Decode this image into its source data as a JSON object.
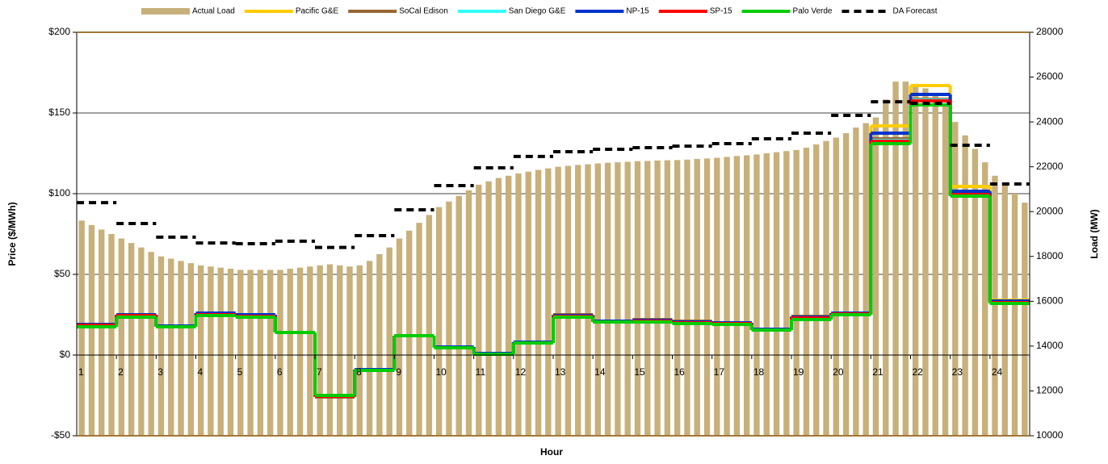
{
  "chart_data": {
    "type": "bar-step-line",
    "xlabel": "Hour",
    "ylabel": "Price ($/MWh)",
    "y2label": "Load (MW)",
    "xlim": [
      1,
      25
    ],
    "xticks": [
      1,
      2,
      3,
      4,
      5,
      6,
      7,
      8,
      9,
      10,
      11,
      12,
      13,
      14,
      15,
      16,
      17,
      18,
      19,
      20,
      21,
      22,
      23,
      24
    ],
    "ylim": [
      -50,
      200
    ],
    "yticks": [
      {
        "value": -50,
        "label": "-$50"
      },
      {
        "value": 0,
        "label": "$0"
      },
      {
        "value": 50,
        "label": "$50"
      },
      {
        "value": 100,
        "label": "$100"
      },
      {
        "value": 150,
        "label": "$150"
      },
      {
        "value": 200,
        "label": "$200"
      }
    ],
    "y2lim": [
      10000,
      28000
    ],
    "y2ticks": [
      10000,
      12000,
      14000,
      16000,
      18000,
      20000,
      22000,
      24000,
      26000,
      28000
    ],
    "grid": true,
    "legend": "top",
    "x": [
      1,
      2,
      3,
      4,
      5,
      6,
      7,
      8,
      9,
      10,
      11,
      12,
      13,
      14,
      15,
      16,
      17,
      18,
      19,
      20,
      21,
      22,
      23,
      24
    ],
    "series": [
      {
        "name": "Actual Load",
        "color": "#c8b07a",
        "kind": "bar",
        "axis": "y2",
        "x": [
          1,
          1.25,
          1.5,
          1.75,
          2,
          2.25,
          2.5,
          2.75,
          3,
          3.25,
          3.5,
          3.75,
          4,
          4.25,
          4.5,
          4.75,
          5,
          5.25,
          5.5,
          5.75,
          6,
          6.25,
          6.5,
          6.75,
          7,
          7.25,
          7.5,
          7.75,
          8,
          8.25,
          8.5,
          8.75,
          9,
          9.25,
          9.5,
          9.75,
          10,
          10.25,
          10.5,
          10.75,
          11,
          11.25,
          11.5,
          11.75,
          12,
          12.25,
          12.5,
          12.75,
          13,
          13.25,
          13.5,
          13.75,
          14,
          14.25,
          14.5,
          14.75,
          15,
          15.25,
          15.5,
          15.75,
          16,
          16.25,
          16.5,
          16.75,
          17,
          17.25,
          17.5,
          17.75,
          18,
          18.25,
          18.5,
          18.75,
          19,
          19.25,
          19.5,
          19.75,
          20,
          20.25,
          20.5,
          20.75,
          21,
          21.25,
          21.5,
          21.75,
          22,
          22.25,
          22.5,
          22.75,
          23,
          23.25,
          23.5,
          23.75,
          24,
          24.25,
          24.5,
          24.75
        ],
        "values": [
          19600,
          19400,
          19200,
          19000,
          18800,
          18600,
          18400,
          18200,
          18000,
          17900,
          17800,
          17700,
          17600,
          17550,
          17500,
          17450,
          17400,
          17400,
          17400,
          17400,
          17400,
          17450,
          17500,
          17550,
          17600,
          17650,
          17600,
          17550,
          17600,
          17800,
          18100,
          18400,
          18800,
          19150,
          19500,
          19850,
          20200,
          20450,
          20700,
          20950,
          21200,
          21350,
          21500,
          21600,
          21700,
          21780,
          21860,
          21930,
          22000,
          22040,
          22080,
          22110,
          22150,
          22180,
          22200,
          22220,
          22250,
          22260,
          22280,
          22290,
          22300,
          22320,
          22350,
          22370,
          22400,
          22440,
          22480,
          22510,
          22550,
          22600,
          22650,
          22700,
          22750,
          22850,
          23000,
          23150,
          23300,
          23500,
          23750,
          23950,
          24200,
          25000,
          25800,
          25800,
          25700,
          25500,
          25200,
          24700,
          24000,
          23400,
          22800,
          22200,
          21600,
          21200,
          20800,
          20400
        ]
      },
      {
        "name": "Pacific G&E",
        "color": "#ffcc00",
        "kind": "step",
        "values": [
          19,
          25,
          18,
          26,
          25,
          14,
          -25,
          -9,
          12,
          5,
          1,
          8,
          25,
          21,
          22,
          21,
          20,
          16,
          24,
          26,
          142,
          167,
          104.5,
          34
        ]
      },
      {
        "name": "SoCal Edison",
        "color": "#996633",
        "kind": "step",
        "values": [
          19,
          25,
          18,
          26,
          25,
          14,
          -26,
          -9,
          12,
          5,
          1,
          8,
          25,
          21,
          22,
          21,
          20,
          16,
          24,
          26,
          134,
          158.5,
          100,
          33
        ]
      },
      {
        "name": "San Diego G&E",
        "color": "#33ffff",
        "kind": "step",
        "values": [
          18.5,
          24.5,
          18,
          25.5,
          24.5,
          14,
          -25.5,
          -9.5,
          12,
          4.5,
          0.5,
          7.5,
          24,
          20.5,
          21,
          20.5,
          19.5,
          15.5,
          23,
          25.5,
          133,
          158,
          99.5,
          32.5
        ]
      },
      {
        "name": "NP-15",
        "color": "#0033cc",
        "kind": "step",
        "values": [
          19,
          25,
          18,
          26,
          25,
          14,
          -25,
          -9,
          12,
          5,
          1,
          8,
          24.5,
          21,
          21.5,
          20.5,
          20,
          16,
          23.5,
          26,
          137.5,
          161.5,
          101.5,
          33.5
        ]
      },
      {
        "name": "SP-15",
        "color": "#ff0000",
        "kind": "step",
        "values": [
          18.5,
          24.5,
          17.5,
          25,
          24,
          14,
          -25.5,
          -9.5,
          12,
          4.5,
          0.5,
          7.5,
          24,
          20.5,
          21,
          20,
          19.5,
          15.5,
          23,
          25.5,
          132.5,
          157.5,
          99.5,
          32.5
        ]
      },
      {
        "name": "Palo Verde",
        "color": "#00cc00",
        "kind": "step",
        "values": [
          17.5,
          23.5,
          17.5,
          24.5,
          23.5,
          14,
          -25,
          -9.5,
          12,
          4.5,
          0.5,
          7.5,
          23.5,
          20.5,
          20.5,
          19.5,
          19,
          15.5,
          22,
          25,
          131,
          155,
          98.5,
          32
        ]
      },
      {
        "name": "DA Forecast",
        "color": "#000000",
        "kind": "dash",
        "axis": "y2",
        "values": [
          20400,
          19470,
          18860,
          18600,
          18570,
          18680,
          18400,
          18930,
          20080,
          21160,
          21950,
          22460,
          22670,
          22780,
          22850,
          22920,
          23030,
          23250,
          23500,
          24290,
          24900,
          24830,
          22960,
          21230
        ]
      }
    ]
  }
}
